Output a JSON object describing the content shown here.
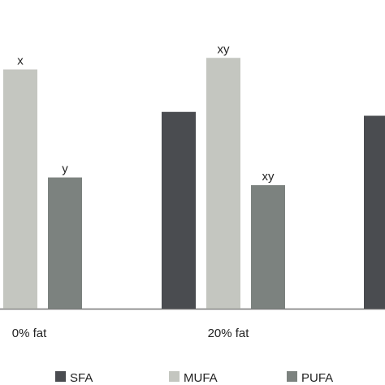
{
  "chart_data": {
    "type": "bar",
    "categories": [
      "0% fat",
      "20% fat",
      ""
    ],
    "series": [
      {
        "name": "SFA",
        "color": "#4a4c50",
        "values": [
          null,
          51,
          50
        ],
        "labels": [
          "",
          "",
          ""
        ]
      },
      {
        "name": "MUFA",
        "color": "#c4c6c0",
        "values": [
          62,
          65,
          null
        ],
        "labels": [
          "x",
          "xy",
          ""
        ]
      },
      {
        "name": "PUFA",
        "color": "#7c827f",
        "values": [
          34,
          32,
          null
        ],
        "labels": [
          "y",
          "xy",
          ""
        ]
      }
    ],
    "ylim": [
      0,
      80
    ],
    "grid": false,
    "legend_position": "bottom",
    "xlabel": "",
    "ylabel": ""
  }
}
